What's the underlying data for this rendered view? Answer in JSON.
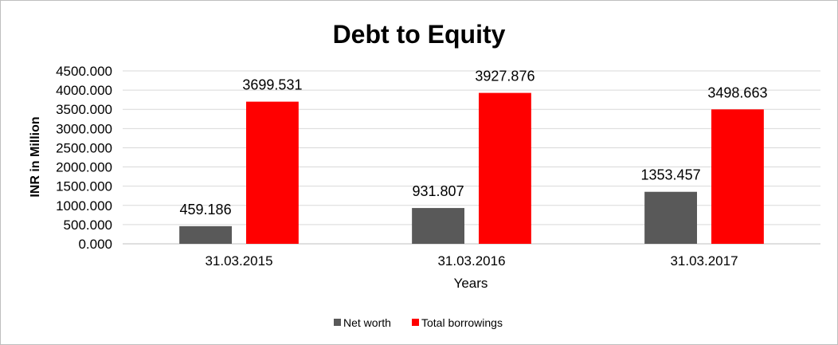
{
  "chart_data": {
    "type": "bar",
    "title": "Debt to Equity",
    "xlabel": "Years",
    "ylabel": "INR in Million",
    "categories": [
      "31.03.2015",
      "31.03.2016",
      "31.03.2017"
    ],
    "series": [
      {
        "name": "Net worth",
        "color": "#595959",
        "values": [
          459.186,
          931.807,
          1353.457
        ]
      },
      {
        "name": "Total borrowings",
        "color": "#ff0000",
        "values": [
          3699.531,
          3927.876,
          3498.663
        ]
      }
    ],
    "value_labels": [
      [
        "459.186",
        "931.807",
        "1353.457"
      ],
      [
        "3699.531",
        "3927.876",
        "3498.663"
      ]
    ],
    "yticks": [
      "0.000",
      "500.000",
      "1000.000",
      "1500.000",
      "2000.000",
      "2500.000",
      "3000.000",
      "3500.000",
      "4000.000",
      "4500.000"
    ],
    "ylim": [
      0,
      4500
    ],
    "grid": true,
    "legend_position": "bottom"
  }
}
